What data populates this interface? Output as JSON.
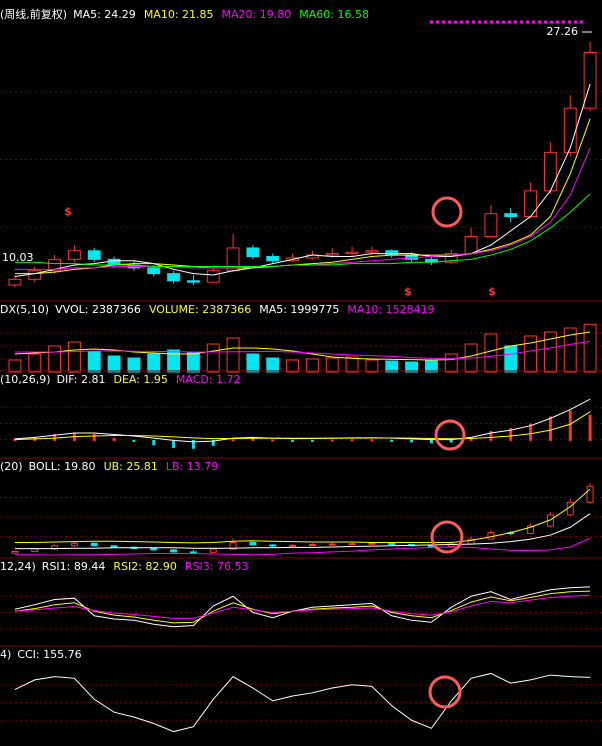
{
  "chart_data": [
    {
      "type": "candlestick",
      "label": "(周线,前复权)",
      "legend": [
        {
          "text": "MA5: 24.29",
          "color": "#ffffff"
        },
        {
          "text": "MA10: 21.85",
          "color": "#ffff00"
        },
        {
          "text": "MA20: 19.80",
          "color": "#ff00ff"
        },
        {
          "text": "MA60: 16.58",
          "color": "#00ff00"
        }
      ],
      "open": [
        10.2,
        10.6,
        11.2,
        12.0,
        12.6,
        12.0,
        11.6,
        11.4,
        11.0,
        10.5,
        10.4,
        11.2,
        12.8,
        12.2,
        11.9,
        12.1,
        12.3,
        12.4,
        12.5,
        12.6,
        12.3,
        12.0,
        11.8,
        12.4,
        13.6,
        15.2,
        15.0,
        16.8,
        19.5,
        22.6
      ],
      "high": [
        10.9,
        11.5,
        12.3,
        13.0,
        12.8,
        12.2,
        11.9,
        11.6,
        11.2,
        10.9,
        11.4,
        13.8,
        13.0,
        12.4,
        12.4,
        12.6,
        12.8,
        12.9,
        12.9,
        12.7,
        12.5,
        12.2,
        12.7,
        14.2,
        15.8,
        15.6,
        17.4,
        20.2,
        23.5,
        27.26
      ],
      "low": [
        10.03,
        10.4,
        11.0,
        11.8,
        11.8,
        11.4,
        11.2,
        10.8,
        10.3,
        10.2,
        10.3,
        11.1,
        12.0,
        11.7,
        11.8,
        12.0,
        12.1,
        12.2,
        12.3,
        12.1,
        11.8,
        11.6,
        11.7,
        12.3,
        13.5,
        14.6,
        14.9,
        16.6,
        19.2,
        22.4
      ],
      "close": [
        10.6,
        11.2,
        12.0,
        12.6,
        12.0,
        11.6,
        11.4,
        11.0,
        10.5,
        10.4,
        11.2,
        12.8,
        12.2,
        11.9,
        12.1,
        12.3,
        12.4,
        12.5,
        12.6,
        12.3,
        12.0,
        11.8,
        12.4,
        13.6,
        15.2,
        15.0,
        16.8,
        19.5,
        22.6,
        26.5
      ],
      "up_color": "#ff3232",
      "down_color": "#00e5ee",
      "series": [
        {
          "color": "#ffffff",
          "values": [
            10.8,
            11.0,
            11.3,
            11.6,
            11.7,
            11.9,
            11.9,
            11.7,
            11.3,
            11.0,
            10.9,
            11.2,
            11.4,
            11.7,
            12.0,
            12.3,
            12.2,
            12.2,
            12.4,
            12.4,
            12.4,
            12.2,
            12.2,
            12.4,
            13.0,
            14.0,
            15.0,
            16.8,
            19.8,
            24.29
          ]
        },
        {
          "color": "#ffff00",
          "values": [
            11.0,
            11.0,
            11.1,
            11.3,
            11.4,
            11.6,
            11.7,
            11.7,
            11.6,
            11.5,
            11.4,
            11.4,
            11.4,
            11.5,
            11.6,
            11.7,
            11.8,
            12.0,
            12.2,
            12.3,
            12.3,
            12.3,
            12.3,
            12.4,
            12.7,
            13.1,
            13.7,
            15.0,
            18.0,
            21.85
          ]
        },
        {
          "color": "#ff00ff",
          "values": [
            11.3,
            11.3,
            11.3,
            11.4,
            11.4,
            11.5,
            11.5,
            11.5,
            11.5,
            11.4,
            11.4,
            11.4,
            11.5,
            11.5,
            11.6,
            11.6,
            11.7,
            11.8,
            11.9,
            12.0,
            12.1,
            12.2,
            12.3,
            12.4,
            12.6,
            13.0,
            13.6,
            14.6,
            16.5,
            19.8
          ]
        },
        {
          "color": "#00ff00",
          "values": [
            11.8,
            11.8,
            11.7,
            11.7,
            11.6,
            11.6,
            11.6,
            11.5,
            11.5,
            11.5,
            11.5,
            11.5,
            11.5,
            11.5,
            11.6,
            11.6,
            11.6,
            11.7,
            11.7,
            11.7,
            11.8,
            11.8,
            11.9,
            12.0,
            12.3,
            12.7,
            13.3,
            14.2,
            15.3,
            16.58
          ]
        }
      ],
      "ylim": [
        9.5,
        28.5
      ],
      "annotations": [
        "27.26",
        "10.03"
      ],
      "markers": [
        "$",
        "$",
        "$"
      ]
    },
    {
      "type": "bar",
      "label": "DX(5,10)",
      "legend": [
        {
          "text": "VVOL: 2387366",
          "color": "#ffffff"
        },
        {
          "text": "VOLUME: 2387366",
          "color": "#ffff00"
        },
        {
          "text": "MA5: 1999775",
          "color": "#ffffff"
        },
        {
          "text": "MA10: 1528419",
          "color": "#ff00ff"
        }
      ],
      "series": [
        {
          "kind": "bar",
          "up_color": "#ff3232",
          "down_color": "#00e5ee",
          "values": [
            600000,
            900000,
            1300000,
            1500000,
            1000000,
            800000,
            700000,
            900000,
            1100000,
            1000000,
            1400000,
            1700000,
            900000,
            700000,
            600000,
            650000,
            700000,
            750000,
            600000,
            550000,
            500000,
            600000,
            900000,
            1400000,
            1900000,
            1300000,
            1800000,
            2000000,
            2200000,
            2387366
          ]
        },
        {
          "color": "#ffff00",
          "values": [
            900000,
            950000,
            1000000,
            1100000,
            1150000,
            1100000,
            1000000,
            950000,
            900000,
            900000,
            1050000,
            1200000,
            1200000,
            1150000,
            1050000,
            900000,
            750000,
            680000,
            650000,
            630000,
            620000,
            600000,
            620000,
            800000,
            1050000,
            1300000,
            1450000,
            1650000,
            1850000,
            1999775
          ]
        },
        {
          "color": "#ff00ff",
          "values": [
            1000000,
            1000000,
            1000000,
            1020000,
            1050000,
            1050000,
            1040000,
            1030000,
            1020000,
            1000000,
            1000000,
            1010000,
            1020000,
            1030000,
            1000000,
            950000,
            900000,
            850000,
            820000,
            780000,
            720000,
            680000,
            670000,
            700000,
            780000,
            900000,
            1050000,
            1200000,
            1380000,
            1528419
          ]
        }
      ],
      "ylim": [
        0,
        2600000
      ]
    },
    {
      "type": "macd",
      "label": "(10,26,9)",
      "legend": [
        {
          "text": "DIF: 2.81",
          "color": "#ffffff"
        },
        {
          "text": "DEA: 1.95",
          "color": "#ffff00"
        },
        {
          "text": "MACD: 1.72",
          "color": "#ff00ff"
        }
      ],
      "series": [
        {
          "kind": "bar",
          "color": "#ff3232",
          "neg_color": "#00e5ee",
          "values": [
            0.1,
            0.2,
            0.4,
            0.5,
            0.4,
            0.14,
            -0.06,
            -0.3,
            -0.48,
            -0.54,
            -0.34,
            0.04,
            0.12,
            0.02,
            -0.04,
            -0.02,
            0.02,
            0.04,
            0.04,
            -0.02,
            -0.1,
            -0.16,
            -0.12,
            0.14,
            0.6,
            0.8,
            1.1,
            1.6,
            2.0,
            1.72
          ]
        },
        {
          "color": "#ffffff",
          "values": [
            0.1,
            0.2,
            0.35,
            0.5,
            0.5,
            0.4,
            0.3,
            0.15,
            0,
            -0.1,
            -0.05,
            0.15,
            0.2,
            0.15,
            0.12,
            0.13,
            0.15,
            0.17,
            0.18,
            0.15,
            0.1,
            0.05,
            0.05,
            0.2,
            0.5,
            0.7,
            1.0,
            1.5,
            2.1,
            2.81
          ]
        },
        {
          "color": "#ffff00",
          "values": [
            0.05,
            0.1,
            0.15,
            0.25,
            0.3,
            0.33,
            0.33,
            0.3,
            0.24,
            0.17,
            0.12,
            0.13,
            0.14,
            0.14,
            0.14,
            0.14,
            0.14,
            0.15,
            0.16,
            0.16,
            0.15,
            0.13,
            0.11,
            0.13,
            0.2,
            0.3,
            0.45,
            0.7,
            1.1,
            1.95
          ]
        }
      ],
      "ylim": [
        -1,
        3.3
      ]
    },
    {
      "type": "line",
      "label": "(20)",
      "overlay_price": true,
      "legend": [
        {
          "text": "BOLL: 19.80",
          "color": "#ffffff"
        },
        {
          "text": "UB: 25.81",
          "color": "#ffff00"
        },
        {
          "text": "LB: 13.79",
          "color": "#ff00ff"
        }
      ],
      "series": [
        {
          "color": "#ffffff",
          "values": [
            11.3,
            11.3,
            11.3,
            11.4,
            11.4,
            11.5,
            11.5,
            11.5,
            11.5,
            11.4,
            11.4,
            11.4,
            11.5,
            11.5,
            11.6,
            11.6,
            11.7,
            11.8,
            11.9,
            12.0,
            12.1,
            12.2,
            12.3,
            12.4,
            12.6,
            13.0,
            13.6,
            14.6,
            16.5,
            19.8
          ]
        },
        {
          "color": "#ffff00",
          "values": [
            12.8,
            12.8,
            12.9,
            13.0,
            13.1,
            13.1,
            13.0,
            12.9,
            12.8,
            12.7,
            12.8,
            13.1,
            13.2,
            13.1,
            13.0,
            12.9,
            12.9,
            12.9,
            12.8,
            12.8,
            12.8,
            12.8,
            12.8,
            13.3,
            14.2,
            15.2,
            16.5,
            18.3,
            21.5,
            25.81
          ]
        },
        {
          "color": "#ff00ff",
          "values": [
            9.8,
            9.8,
            9.7,
            9.8,
            9.8,
            9.9,
            10.0,
            10.1,
            10.1,
            10.1,
            10.0,
            9.9,
            9.8,
            9.9,
            10.2,
            10.3,
            10.5,
            10.7,
            11.0,
            11.2,
            11.4,
            11.6,
            11.7,
            11.6,
            11.2,
            10.9,
            10.8,
            11.0,
            11.7,
            13.79
          ]
        }
      ],
      "ylim": [
        9.5,
        28.5
      ]
    },
    {
      "type": "line",
      "label": "12,24)",
      "legend": [
        {
          "text": "RSI1: 89.44",
          "color": "#ffffff"
        },
        {
          "text": "RSI2: 82.90",
          "color": "#ffff00"
        },
        {
          "text": "RSI3: 76.53",
          "color": "#ff00ff"
        }
      ],
      "series": [
        {
          "color": "#ffffff",
          "values": [
            55,
            62,
            70,
            72,
            45,
            40,
            38,
            32,
            28,
            30,
            60,
            75,
            50,
            42,
            52,
            58,
            60,
            62,
            64,
            45,
            38,
            35,
            58,
            75,
            82,
            70,
            78,
            85,
            88,
            89.44
          ]
        },
        {
          "color": "#ffff00",
          "values": [
            52,
            56,
            62,
            65,
            52,
            46,
            43,
            38,
            34,
            35,
            52,
            65,
            55,
            48,
            52,
            55,
            57,
            58,
            60,
            50,
            45,
            42,
            53,
            66,
            74,
            68,
            73,
            79,
            82,
            82.9
          ]
        },
        {
          "color": "#ff00ff",
          "values": [
            52,
            54,
            57,
            59,
            53,
            49,
            47,
            44,
            41,
            41,
            49,
            58,
            54,
            50,
            52,
            54,
            55,
            56,
            57,
            52,
            48,
            46,
            51,
            60,
            67,
            65,
            69,
            73,
            75,
            76.53
          ]
        }
      ],
      "ylim": [
        0,
        100
      ]
    },
    {
      "type": "line",
      "label": "4)",
      "legend": [
        {
          "text": "CCI: 155.76",
          "color": "#ffffff"
        }
      ],
      "series": [
        {
          "color": "#ffffff",
          "values": [
            80,
            140,
            160,
            150,
            20,
            -60,
            -90,
            -130,
            -180,
            -150,
            20,
            160,
            90,
            10,
            40,
            60,
            90,
            110,
            100,
            -20,
            -110,
            -160,
            10,
            150,
            180,
            120,
            140,
            170,
            160,
            155.76
          ]
        }
      ],
      "ylim": [
        -220,
        220
      ]
    }
  ]
}
